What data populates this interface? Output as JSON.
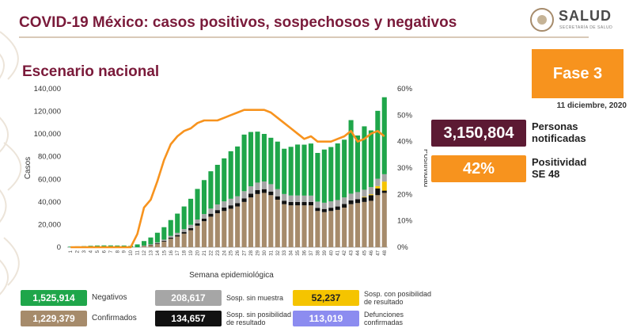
{
  "header": {
    "title": "COVID-19 México: casos positivos, sospechosos y negativos",
    "logo_name": "SALUD",
    "logo_sub": "SECRETARÍA DE SALUD"
  },
  "subtitle": "Escenario nacional",
  "fase": "Fase 3",
  "date": "11 diciembre, 2020",
  "stats": {
    "notificadas": {
      "value": "3,150,804",
      "label1": "Personas",
      "label2": "notificadas",
      "color": "#5c1a33"
    },
    "positividad": {
      "value": "42%",
      "label1": "Positividad",
      "label2": "SE 48",
      "color": "#f7931e"
    }
  },
  "legend": {
    "negativos": {
      "value": "1,525,914",
      "label": "Negativos",
      "color": "#1fa64a"
    },
    "confirmados": {
      "value": "1,229,379",
      "label": "Confirmados",
      "color": "#a68b6b"
    },
    "sin_muestra": {
      "value": "208,617",
      "label": "Sosp. sin muestra",
      "color": "#a6a6a6"
    },
    "sin_posibilidad": {
      "value": "134,657",
      "label1": "Sosp. sin posibilidad",
      "label2": "de resultado",
      "color": "#111111"
    },
    "con_posibilidad": {
      "value": "52,237",
      "label1": "Sosp. con posibilidad",
      "label2": "de resultado",
      "color": "#f5c400"
    },
    "defunciones": {
      "value": "113,019",
      "label1": "Defunciones",
      "label2": "confirmadas",
      "color": "#8c8cf0"
    }
  },
  "chart_data": {
    "type": "bar",
    "stacked": true,
    "xlabel": "Semana epidemiológica",
    "ylabel": "Casos",
    "y2label": "Positividad",
    "ylim": [
      0,
      140000
    ],
    "y2lim": [
      0,
      60
    ],
    "yticks": [
      "0",
      "20,000",
      "40,000",
      "60,000",
      "80,000",
      "100,000",
      "120,000",
      "140,000"
    ],
    "y2ticks": [
      "0%",
      "10%",
      "20%",
      "30%",
      "40%",
      "50%",
      "60%"
    ],
    "categories": [
      "1",
      "2",
      "3",
      "4",
      "5",
      "6",
      "7",
      "8",
      "9",
      "10",
      "11",
      "12",
      "13",
      "14",
      "15",
      "16",
      "17",
      "18",
      "19",
      "20",
      "21",
      "22",
      "23",
      "24",
      "25",
      "26",
      "27",
      "28",
      "29",
      "30",
      "31",
      "32",
      "33",
      "34",
      "35",
      "36",
      "37",
      "38",
      "39",
      "40",
      "41",
      "42",
      "43",
      "44",
      "45",
      "46",
      "47",
      "48"
    ],
    "series": [
      {
        "name": "Confirmados",
        "color": "#a68b6b",
        "values": [
          0,
          0,
          0,
          0,
          0,
          0,
          0,
          0,
          0,
          0,
          0,
          1000,
          1800,
          3000,
          5000,
          7500,
          9500,
          12000,
          15000,
          19000,
          23000,
          27000,
          30000,
          32000,
          34000,
          36000,
          40000,
          44000,
          47000,
          48000,
          46000,
          42000,
          38000,
          37000,
          37000,
          37000,
          37000,
          32000,
          31000,
          32000,
          33000,
          35000,
          38000,
          39000,
          40000,
          41000,
          46000,
          48000
        ]
      },
      {
        "name": "Sosp. sin posibilidad de resultado",
        "color": "#111111",
        "values": [
          0,
          0,
          0,
          0,
          0,
          0,
          0,
          0,
          0,
          0,
          0,
          150,
          300,
          500,
          700,
          1000,
          1200,
          1500,
          1800,
          2000,
          2300,
          2600,
          2800,
          3000,
          3000,
          3000,
          3200,
          3300,
          3400,
          3300,
          3200,
          3000,
          3000,
          2900,
          2900,
          2900,
          2900,
          2800,
          2800,
          2900,
          3000,
          3200,
          3300,
          3500,
          4000,
          5000,
          6000,
          2000
        ]
      },
      {
        "name": "Sosp. con posibilidad de resultado",
        "color": "#f5c400",
        "values": [
          0,
          0,
          0,
          0,
          0,
          0,
          0,
          0,
          0,
          0,
          0,
          0,
          0,
          0,
          0,
          0,
          0,
          0,
          0,
          0,
          0,
          0,
          0,
          0,
          0,
          0,
          0,
          0,
          0,
          0,
          0,
          0,
          0,
          0,
          0,
          0,
          0,
          0,
          0,
          0,
          0,
          0,
          0,
          0,
          500,
          800,
          2000,
          8000
        ]
      },
      {
        "name": "Sosp. sin muestra",
        "color": "#a6a6a6",
        "values": [
          0,
          0,
          0,
          0,
          0,
          0,
          0,
          0,
          0,
          0,
          0,
          300,
          500,
          800,
          1000,
          1500,
          2000,
          2500,
          3000,
          3500,
          4000,
          4500,
          5000,
          5500,
          5800,
          6000,
          6300,
          6500,
          6700,
          6800,
          6500,
          6300,
          6000,
          5800,
          5800,
          5700,
          5700,
          5500,
          5500,
          5600,
          5700,
          5800,
          6000,
          6200,
          6300,
          6400,
          6500,
          6500
        ]
      },
      {
        "name": "Negativos",
        "color": "#1fa64a",
        "values": [
          500,
          800,
          1000,
          1300,
          1500,
          1600,
          1600,
          1500,
          1500,
          1200,
          2500,
          4000,
          6000,
          8500,
          11000,
          14000,
          17000,
          20000,
          23000,
          27000,
          30000,
          33000,
          35000,
          38000,
          42000,
          44000,
          50000,
          48000,
          45000,
          42000,
          41000,
          42000,
          40000,
          43000,
          45000,
          45000,
          46000,
          43000,
          47000,
          48000,
          50000,
          51000,
          65000,
          50000,
          56000,
          50000,
          60000,
          68000
        ]
      }
    ],
    "line": {
      "name": "Positividad",
      "color": "#f7931e",
      "values": [
        0,
        0,
        0,
        0,
        0,
        0,
        0,
        0,
        0,
        0,
        5,
        15,
        18,
        25,
        33,
        39,
        42,
        44,
        45,
        47,
        48,
        48,
        48,
        49,
        50,
        51,
        52,
        52,
        52,
        52,
        51,
        49,
        47,
        45,
        43,
        41,
        42,
        40,
        40,
        40,
        41,
        42,
        44,
        40,
        41,
        43,
        44,
        42
      ]
    }
  }
}
